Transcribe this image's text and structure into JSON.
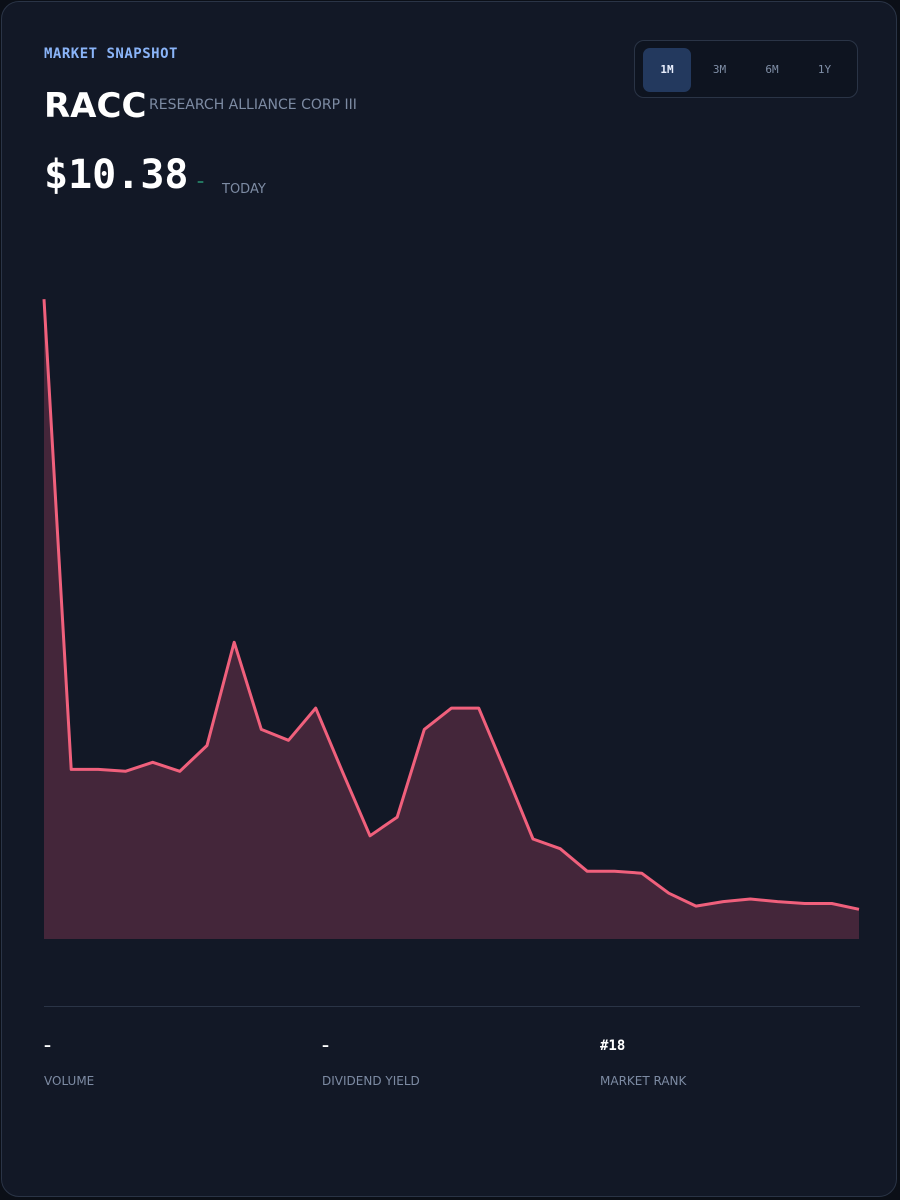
{
  "header": {
    "label": "MARKET SNAPSHOT",
    "ticker": "RACC",
    "company": "RESEARCH ALLIANCE CORP III",
    "price": "$10.38",
    "change": "–",
    "period": "TODAY"
  },
  "tabs": [
    "1M",
    "3M",
    "6M",
    "1Y"
  ],
  "chart_data": {
    "type": "area",
    "color": "#f0607c",
    "fill": "#44263a",
    "values": [
      99.2,
      26.3,
      26.3,
      26.0,
      27.4,
      26.0,
      30.0,
      46.0,
      32.5,
      30.8,
      35.8,
      25.8,
      16.0,
      18.9,
      32.5,
      35.8,
      35.8,
      25.8,
      15.5,
      14.0,
      10.5,
      10.5,
      10.2,
      7.1,
      5.1,
      5.8,
      6.2,
      5.8,
      5.5,
      5.5,
      4.6
    ],
    "ylim": [
      0,
      100
    ]
  },
  "stats": [
    {
      "value": "–",
      "label": "VOLUME"
    },
    {
      "value": "–",
      "label": "DIVIDEND YIELD"
    },
    {
      "value": "#18",
      "label": "MARKET RANK"
    }
  ]
}
